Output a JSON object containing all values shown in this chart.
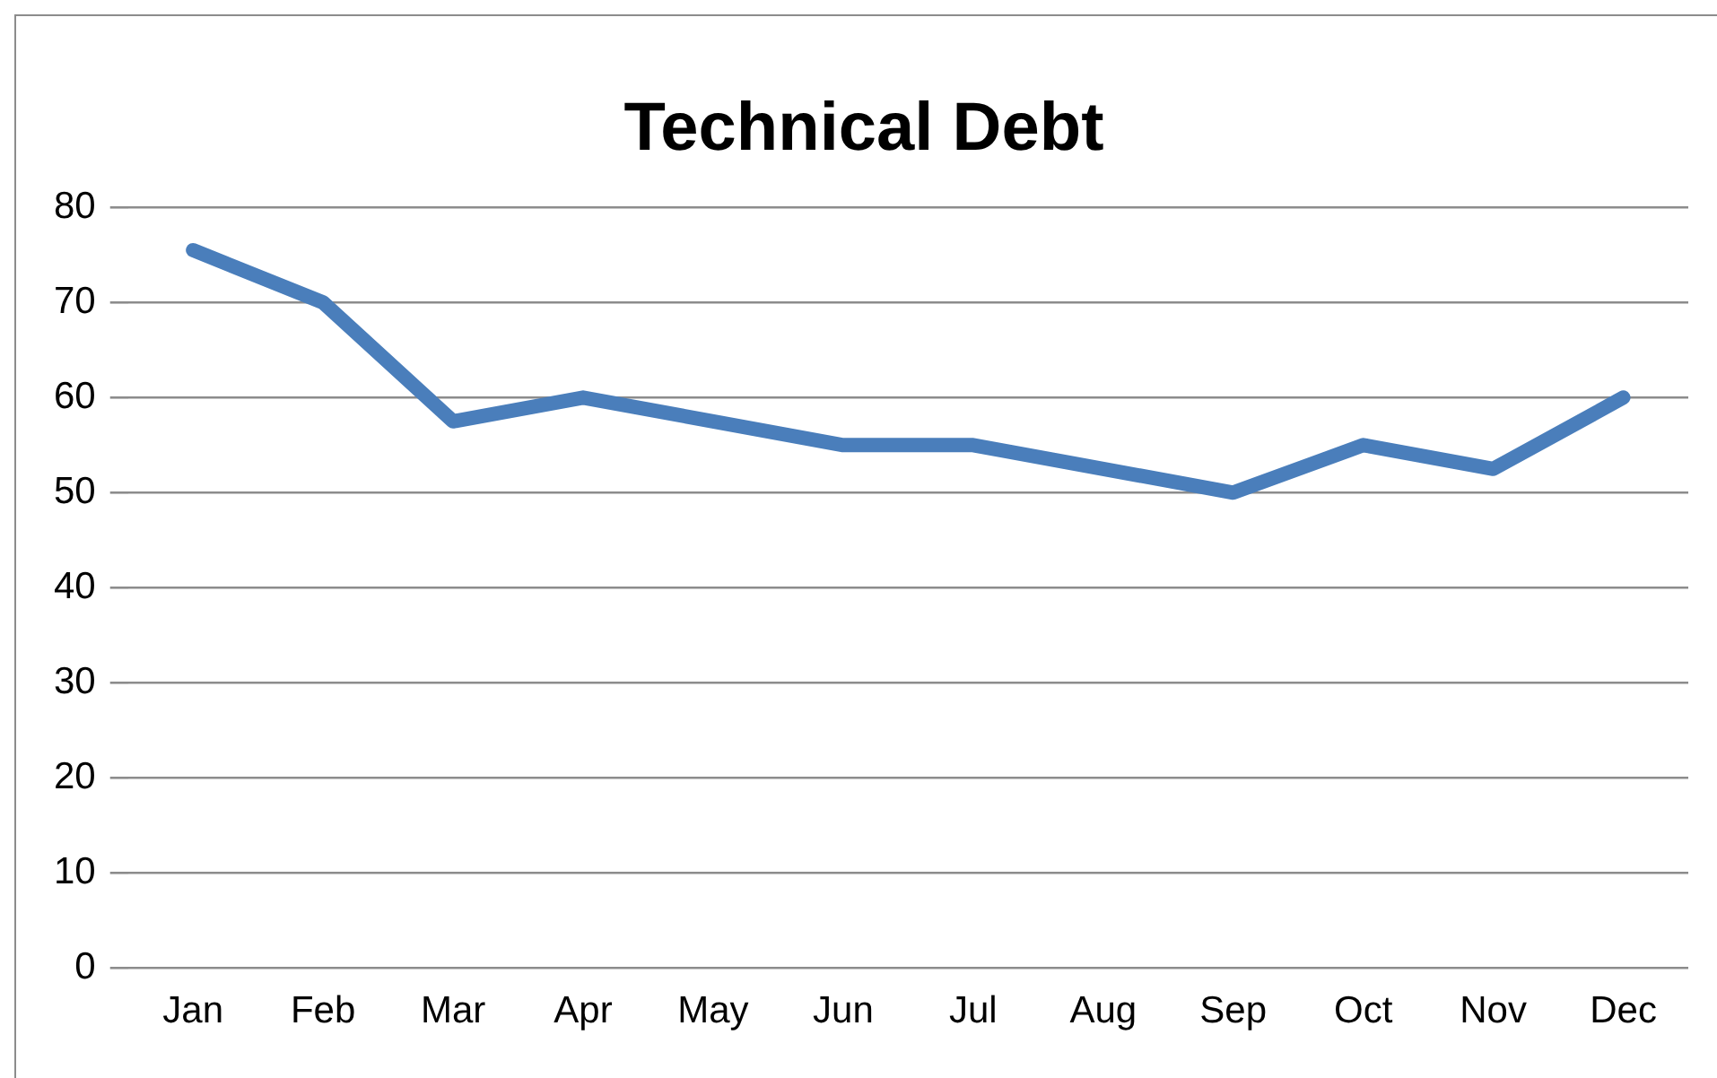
{
  "chart_data": {
    "type": "line",
    "title": "Technical Debt",
    "categories": [
      "Jan",
      "Feb",
      "Mar",
      "Apr",
      "May",
      "Jun",
      "Jul",
      "Aug",
      "Sep",
      "Oct",
      "Nov",
      "Dec"
    ],
    "series": [
      {
        "color": "#4a7ebb",
        "values": [
          75.5,
          70,
          57.5,
          60,
          57.5,
          55,
          55,
          52.5,
          50,
          55,
          52.5,
          60
        ]
      }
    ],
    "ylim": [
      0,
      80
    ],
    "yticks": [
      0,
      10,
      20,
      30,
      40,
      50,
      60,
      70,
      80
    ],
    "grid": "y",
    "legend": false,
    "marker": "none",
    "line_style": "solid"
  }
}
